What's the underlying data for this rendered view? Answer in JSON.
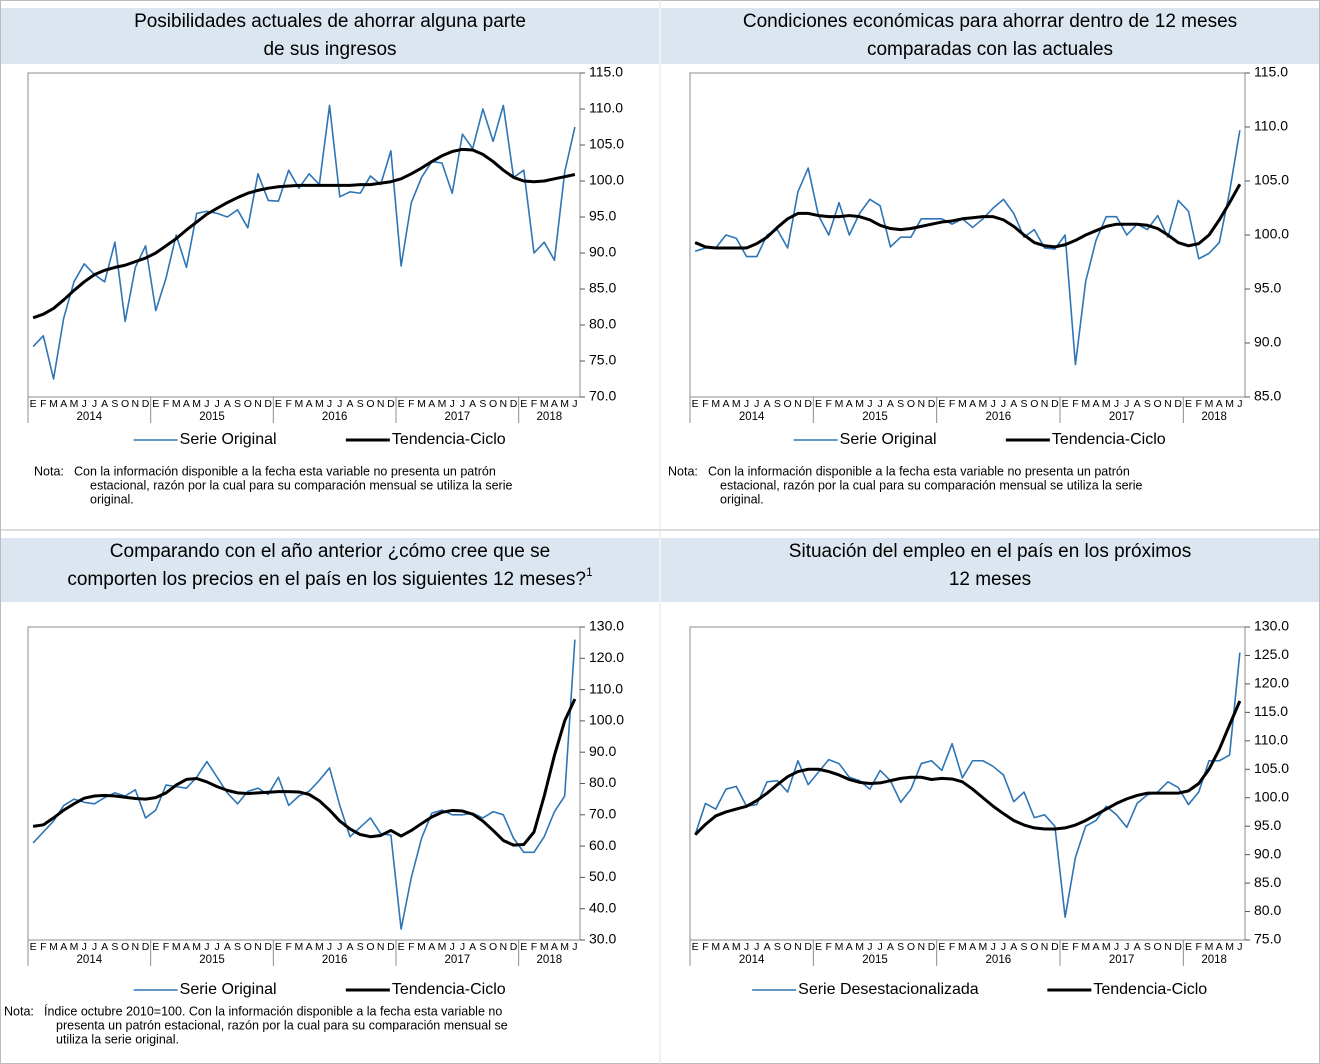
{
  "chart_data": [
    {
      "type": "line",
      "title": [
        "Posibilidades actuales de ahorrar alguna parte",
        "de sus ingresos"
      ],
      "categories": [
        "E",
        "F",
        "M",
        "A",
        "M",
        "J",
        "J",
        "A",
        "S",
        "O",
        "N",
        "D",
        "E",
        "F",
        "M",
        "A",
        "M",
        "J",
        "J",
        "A",
        "S",
        "O",
        "N",
        "D",
        "E",
        "F",
        "M",
        "A",
        "M",
        "J",
        "J",
        "A",
        "S",
        "O",
        "N",
        "D",
        "E",
        "F",
        "M",
        "A",
        "M",
        "J",
        "J",
        "A",
        "S",
        "O",
        "N",
        "D",
        "E",
        "F",
        "M",
        "A",
        "M",
        "J"
      ],
      "x_groups": [
        "2014",
        "2015",
        "2016",
        "2017",
        "2018"
      ],
      "ylim": [
        70,
        115
      ],
      "yticks": [
        {
          "value": 70,
          "label": "70.0"
        },
        {
          "value": 75,
          "label": "75.0"
        },
        {
          "value": 80,
          "label": "80.0"
        },
        {
          "value": 85,
          "label": "85.0"
        },
        {
          "value": 90,
          "label": "90.0"
        },
        {
          "value": 95,
          "label": "95.0"
        },
        {
          "value": 100,
          "label": "100.0"
        },
        {
          "value": 105,
          "label": "105.0"
        },
        {
          "value": 110,
          "label": "110.0"
        },
        {
          "value": 115,
          "label": "115.0"
        }
      ],
      "series": [
        {
          "name": "Serie Original",
          "color": "#2e75b6",
          "values": [
            77.0,
            78.5,
            72.5,
            81,
            86,
            88.5,
            87,
            86,
            91.5,
            80.5,
            88,
            91,
            82,
            86.5,
            92.5,
            88,
            95.5,
            95.8,
            95.5,
            95,
            96,
            93.5,
            101,
            97.3,
            97.2,
            101.5,
            99,
            101,
            99.5,
            110.5,
            97.8,
            98.5,
            98.3,
            100.7,
            99.5,
            104.2,
            88.2,
            97,
            100.5,
            102.7,
            102.5,
            98.3,
            106.5,
            104.5,
            110,
            105.5,
            110.5,
            100.5,
            101.5,
            90,
            91.5,
            89,
            101.2,
            107.5
          ]
        },
        {
          "name": "Tendencia-Ciclo",
          "color": "#000000",
          "values": [
            81,
            81.5,
            82.3,
            83.5,
            84.8,
            86,
            87,
            87.6,
            88,
            88.3,
            88.8,
            89.3,
            90,
            91,
            92,
            93.2,
            94.3,
            95.4,
            96.2,
            97,
            97.7,
            98.3,
            98.7,
            99,
            99.2,
            99.3,
            99.4,
            99.4,
            99.4,
            99.4,
            99.4,
            99.4,
            99.5,
            99.5,
            99.7,
            99.9,
            100.3,
            101,
            101.8,
            102.7,
            103.5,
            104.1,
            104.4,
            104.3,
            103.7,
            102.7,
            101.5,
            100.5,
            100,
            99.9,
            100,
            100.3,
            100.6,
            100.9
          ]
        }
      ],
      "note_label": "Nota:",
      "note": [
        "Con la información disponible a la fecha esta variable no presenta un patrón",
        "estacional, razón por la cual para su comparación mensual se utiliza la serie",
        "original."
      ]
    },
    {
      "type": "line",
      "title": [
        "Condiciones económicas para ahorrar dentro de 12 meses",
        "comparadas con las actuales"
      ],
      "categories": [
        "E",
        "F",
        "M",
        "A",
        "M",
        "J",
        "J",
        "A",
        "S",
        "O",
        "N",
        "D",
        "E",
        "F",
        "M",
        "A",
        "M",
        "J",
        "J",
        "A",
        "S",
        "O",
        "N",
        "D",
        "E",
        "F",
        "M",
        "A",
        "M",
        "J",
        "J",
        "A",
        "S",
        "O",
        "N",
        "D",
        "E",
        "F",
        "M",
        "A",
        "M",
        "J",
        "J",
        "A",
        "S",
        "O",
        "N",
        "D",
        "E",
        "F",
        "M",
        "A",
        "M",
        "J"
      ],
      "x_groups": [
        "2014",
        "2015",
        "2016",
        "2017",
        "2018"
      ],
      "ylim": [
        85,
        115
      ],
      "yticks": [
        {
          "value": 85,
          "label": "85.0"
        },
        {
          "value": 90,
          "label": "90.0"
        },
        {
          "value": 95,
          "label": "95.0"
        },
        {
          "value": 100,
          "label": "100.0"
        },
        {
          "value": 105,
          "label": "105.0"
        },
        {
          "value": 110,
          "label": "110.0"
        },
        {
          "value": 115,
          "label": "115.0"
        }
      ],
      "series": [
        {
          "name": "Serie Original",
          "color": "#2e75b6",
          "values": [
            98.5,
            98.8,
            98.8,
            100,
            99.7,
            98,
            98,
            100,
            100.5,
            98.8,
            104,
            106.2,
            101.8,
            100,
            103,
            100,
            102,
            103.3,
            102.7,
            98.9,
            99.8,
            99.8,
            101.5,
            101.5,
            101.5,
            101,
            101.5,
            100.7,
            101.5,
            102.5,
            103.3,
            102,
            99.8,
            100.5,
            98.8,
            98.7,
            100,
            88,
            95.7,
            99.5,
            101.7,
            101.7,
            100,
            101,
            100.5,
            101.8,
            99.8,
            103.2,
            102.2,
            97.8,
            98.3,
            99.3,
            104,
            109.7
          ]
        },
        {
          "name": "Tendencia-Ciclo",
          "color": "#000000",
          "values": [
            99.3,
            98.9,
            98.8,
            98.8,
            98.8,
            98.8,
            99.2,
            99.8,
            100.7,
            101.5,
            102,
            102,
            101.8,
            101.7,
            101.7,
            101.8,
            101.7,
            101.4,
            100.9,
            100.6,
            100.5,
            100.6,
            100.8,
            101,
            101.2,
            101.3,
            101.5,
            101.6,
            101.7,
            101.7,
            101.4,
            100.8,
            100,
            99.3,
            99,
            98.9,
            99.1,
            99.5,
            100,
            100.4,
            100.8,
            101,
            101,
            101,
            100.9,
            100.6,
            100,
            99.3,
            99,
            99.2,
            100,
            101.4,
            103,
            104.7
          ]
        }
      ],
      "note_label": "Nota:",
      "note": [
        "Con la información disponible a la fecha esta variable no presenta un patrón",
        "estacional, razón por la cual para su comparación mensual se utiliza la serie",
        "original."
      ]
    },
    {
      "type": "line",
      "title": [
        "Comparando con el año anterior ¿cómo cree que se",
        "comporten los precios en el país en los siguientes 12 meses?"
      ],
      "title_sup": "1",
      "categories": [
        "E",
        "F",
        "M",
        "A",
        "M",
        "J",
        "J",
        "A",
        "S",
        "O",
        "N",
        "D",
        "E",
        "F",
        "M",
        "A",
        "M",
        "J",
        "J",
        "A",
        "S",
        "O",
        "N",
        "D",
        "E",
        "F",
        "M",
        "A",
        "M",
        "J",
        "J",
        "A",
        "S",
        "O",
        "N",
        "D",
        "E",
        "F",
        "M",
        "A",
        "M",
        "J",
        "J",
        "A",
        "S",
        "O",
        "N",
        "D",
        "E",
        "F",
        "M",
        "A",
        "M",
        "J"
      ],
      "x_groups": [
        "2014",
        "2015",
        "2016",
        "2017",
        "2018"
      ],
      "ylim": [
        30,
        130
      ],
      "yticks": [
        {
          "value": 30,
          "label": "30.0"
        },
        {
          "value": 40,
          "label": "40.0"
        },
        {
          "value": 50,
          "label": "50.0"
        },
        {
          "value": 60,
          "label": "60.0"
        },
        {
          "value": 70,
          "label": "70.0"
        },
        {
          "value": 80,
          "label": "80.0"
        },
        {
          "value": 90,
          "label": "90.0"
        },
        {
          "value": 100,
          "label": "100.0"
        },
        {
          "value": 110,
          "label": "110.0"
        },
        {
          "value": 120,
          "label": "120.0"
        },
        {
          "value": 130,
          "label": "130.0"
        }
      ],
      "series": [
        {
          "name": "Serie Original",
          "color": "#2e75b6",
          "values": [
            61,
            64.5,
            68,
            73,
            75,
            74,
            73.5,
            75.5,
            77,
            76,
            78,
            69,
            71.5,
            79.5,
            79,
            78.5,
            82,
            87,
            82,
            77,
            73.5,
            77.5,
            78.5,
            76.5,
            82,
            73,
            76,
            77.5,
            81,
            85,
            73,
            63,
            66,
            69,
            64,
            63.5,
            33.5,
            50,
            62.5,
            70.5,
            71.5,
            70,
            70,
            70.5,
            69,
            71,
            70,
            62.5,
            58,
            58,
            63,
            71,
            76,
            126
          ]
        },
        {
          "name": "Tendencia-Ciclo",
          "color": "#000000",
          "values": [
            66.3,
            66.8,
            69,
            71.5,
            73.5,
            75.3,
            76,
            76.2,
            76,
            75.6,
            75.2,
            75,
            75.5,
            77,
            79.5,
            81.3,
            81.6,
            80.5,
            79,
            77.8,
            77,
            76.8,
            77,
            77.2,
            77.4,
            77.4,
            77.3,
            76.5,
            74.5,
            71.5,
            68,
            65.5,
            63.7,
            63,
            63.4,
            65,
            63.2,
            65,
            67.2,
            69.3,
            70.8,
            71.4,
            71.2,
            70.2,
            68,
            65,
            61.8,
            60.3,
            60.5,
            64.5,
            76,
            89,
            100,
            107
          ]
        }
      ],
      "note_label": "Nota:",
      "note": [
        "Índice octubre 2010=100. Con la información disponible a la fecha esta variable no",
        "presenta un patrón estacional, razón por la cual para su comparación mensual se",
        "utiliza la serie original."
      ]
    },
    {
      "type": "line",
      "title": [
        "Situación del empleo en el país en los próximos",
        "12 meses"
      ],
      "categories": [
        "E",
        "F",
        "M",
        "A",
        "M",
        "J",
        "J",
        "A",
        "S",
        "O",
        "N",
        "D",
        "E",
        "F",
        "M",
        "A",
        "M",
        "J",
        "J",
        "A",
        "S",
        "O",
        "N",
        "D",
        "E",
        "F",
        "M",
        "A",
        "M",
        "J",
        "J",
        "A",
        "S",
        "O",
        "N",
        "D",
        "E",
        "F",
        "M",
        "A",
        "M",
        "J",
        "J",
        "A",
        "S",
        "O",
        "N",
        "D",
        "E",
        "F",
        "M",
        "A",
        "M",
        "J"
      ],
      "x_groups": [
        "2014",
        "2015",
        "2016",
        "2017",
        "2018"
      ],
      "ylim": [
        75,
        130
      ],
      "yticks": [
        {
          "value": 75,
          "label": "75.0"
        },
        {
          "value": 80,
          "label": "80.0"
        },
        {
          "value": 85,
          "label": "85.0"
        },
        {
          "value": 90,
          "label": "90.0"
        },
        {
          "value": 95,
          "label": "95.0"
        },
        {
          "value": 100,
          "label": "100.0"
        },
        {
          "value": 105,
          "label": "105.0"
        },
        {
          "value": 110,
          "label": "110.0"
        },
        {
          "value": 115,
          "label": "115.0"
        },
        {
          "value": 120,
          "label": "120.0"
        },
        {
          "value": 125,
          "label": "125.0"
        },
        {
          "value": 130,
          "label": "130.0"
        }
      ],
      "series": [
        {
          "name": "Serie Desestacionalizada",
          "color": "#2e75b6",
          "values": [
            93.5,
            99,
            98,
            101.5,
            102,
            98.5,
            98.8,
            102.8,
            103,
            101,
            106.5,
            102.3,
            104.5,
            106.7,
            106,
            103.6,
            103,
            101.5,
            104.8,
            103,
            99.2,
            101.5,
            106,
            106.5,
            104.8,
            109.5,
            103.5,
            106.5,
            106.5,
            105.5,
            104,
            99.3,
            101,
            96.5,
            97,
            95,
            79,
            89.5,
            95,
            96,
            98.5,
            97,
            94.8,
            99,
            100.5,
            101,
            102.8,
            101.8,
            98.8,
            101,
            106.5,
            106.5,
            107.5,
            125.5
          ]
        },
        {
          "name": "Tendencia-Ciclo",
          "color": "#000000",
          "values": [
            93.5,
            95.3,
            96.8,
            97.5,
            98,
            98.5,
            99.5,
            100.8,
            102.3,
            103.7,
            104.6,
            105,
            105,
            104.6,
            104,
            103.2,
            102.7,
            102.5,
            102.6,
            103,
            103.4,
            103.6,
            103.6,
            103.2,
            103.4,
            103.3,
            102.8,
            101.5,
            100,
            98.5,
            97.2,
            96,
            95.2,
            94.7,
            94.5,
            94.5,
            94.7,
            95.2,
            96,
            97,
            98,
            99,
            99.8,
            100.4,
            100.8,
            100.8,
            100.8,
            100.8,
            101.2,
            102.5,
            105,
            108.5,
            112.8,
            117
          ]
        }
      ]
    }
  ]
}
